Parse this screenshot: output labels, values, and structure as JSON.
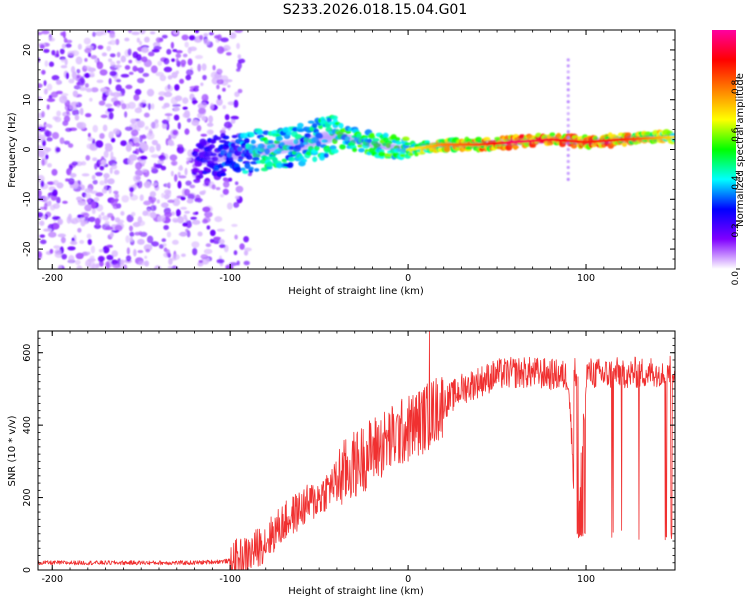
{
  "title": "S233.2026.018.15.04.G01",
  "chart_data": [
    {
      "type": "heatmap",
      "xlabel": "Height of straight line (km)",
      "ylabel": "Frequency (Hz)",
      "xlim": [
        -208,
        150
      ],
      "ylim": [
        -24,
        24
      ],
      "xticks": [
        -200,
        -100,
        0,
        100
      ],
      "yticks": [
        20,
        10,
        0,
        -10,
        -20
      ],
      "colorbar": {
        "label": "Normalized spectral amplitude",
        "range": [
          0,
          1
        ],
        "ticks": [
          "0.0",
          "0.2",
          "0.4",
          "0.6",
          "0.8"
        ],
        "colors": [
          "#ffffff",
          "#8000ff",
          "#0000ff",
          "#00ffff",
          "#00ff00",
          "#ffff00",
          "#ff8000",
          "#ff0000",
          "#ff00a0"
        ]
      },
      "ridge": {
        "x": [
          -120,
          -100,
          -80,
          -60,
          -40,
          -20,
          0,
          20,
          40,
          60,
          80,
          100,
          120,
          150
        ],
        "frequency": [
          -2,
          -1,
          0,
          1,
          3,
          1,
          0,
          1,
          1,
          1.5,
          2,
          1.5,
          2,
          2.5
        ],
        "amplitude": [
          0.2,
          0.3,
          0.45,
          0.4,
          0.5,
          0.5,
          0.55,
          0.7,
          0.75,
          0.9,
          0.85,
          0.8,
          0.8,
          0.6
        ]
      },
      "features": [
        {
          "x": 90,
          "frequency": [
            -6,
            19
          ],
          "description": "vertical streak"
        }
      ]
    },
    {
      "type": "line",
      "xlabel": "Height of straight line (km)",
      "ylabel": "SNR (10 * v/v)",
      "xlim": [
        -208,
        150
      ],
      "ylim": [
        0,
        660
      ],
      "xticks": [
        -200,
        -100,
        0,
        100
      ],
      "yticks": [
        0,
        200,
        400,
        600
      ],
      "series": [
        {
          "name": "SNR",
          "color": "#f03030",
          "x": [
            -208,
            -180,
            -150,
            -120,
            -100,
            -90,
            -80,
            -70,
            -60,
            -50,
            -40,
            -30,
            -20,
            -10,
            0,
            10,
            20,
            30,
            40,
            50,
            60,
            70,
            80,
            90,
            95,
            100,
            110,
            120,
            130,
            140,
            150
          ],
          "y": [
            20,
            20,
            20,
            20,
            25,
            40,
            80,
            130,
            170,
            200,
            250,
            290,
            330,
            360,
            390,
            420,
            460,
            500,
            520,
            540,
            545,
            545,
            540,
            535,
            90,
            545,
            540,
            545,
            545,
            550,
            555
          ],
          "peak": {
            "x": 12,
            "y": 660
          },
          "dropouts_x": [
            96,
            97,
            98,
            99,
            100,
            110,
            115,
            120,
            125,
            130,
            135,
            140,
            145,
            148
          ]
        }
      ]
    }
  ]
}
